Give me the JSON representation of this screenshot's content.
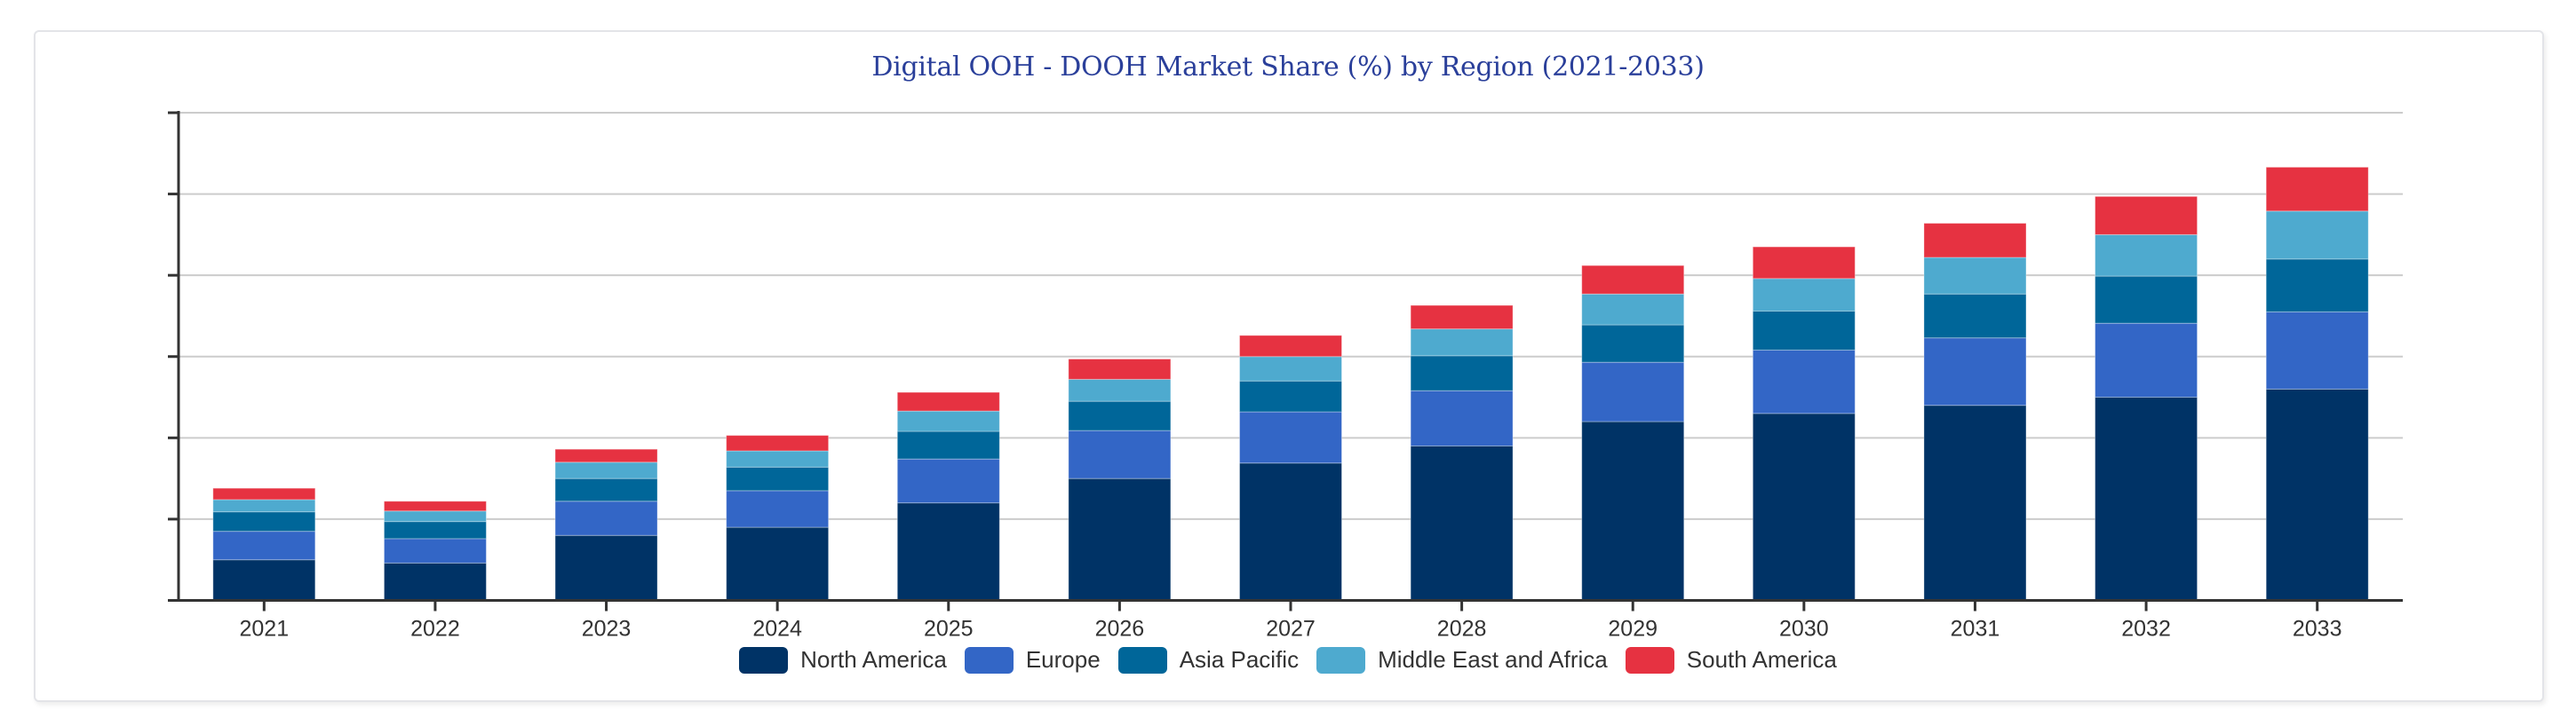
{
  "chart_data": {
    "type": "bar",
    "stacked": true,
    "title": "Digital OOH - DOOH Market Share (%) by Region (2021-2033)",
    "xlabel": "",
    "ylabel": "",
    "y_units_note": "No y-axis tick labels shown; values estimated in gridline-interval units",
    "ylim": [
      0,
      6
    ],
    "y_gridlines": [
      0,
      1,
      2,
      3,
      4,
      5,
      6
    ],
    "grid": true,
    "legend_position": "bottom",
    "categories": [
      "2021",
      "2022",
      "2023",
      "2024",
      "2025",
      "2026",
      "2027",
      "2028",
      "2029",
      "2030",
      "2031",
      "2032",
      "2033"
    ],
    "series": [
      {
        "name": "North America",
        "color": "#003366",
        "values": [
          0.5,
          0.46,
          0.8,
          0.9,
          1.2,
          1.5,
          1.69,
          1.9,
          2.2,
          2.3,
          2.4,
          2.5,
          2.6
        ]
      },
      {
        "name": "Europe",
        "color": "#3366c6",
        "values": [
          0.35,
          0.3,
          0.42,
          0.45,
          0.54,
          0.59,
          0.63,
          0.68,
          0.73,
          0.78,
          0.83,
          0.91,
          0.95
        ]
      },
      {
        "name": "Asia Pacific",
        "color": "#006699",
        "values": [
          0.24,
          0.21,
          0.28,
          0.29,
          0.34,
          0.36,
          0.38,
          0.43,
          0.46,
          0.48,
          0.54,
          0.58,
          0.65
        ]
      },
      {
        "name": "Middle East and Africa",
        "color": "#4eaacf",
        "values": [
          0.15,
          0.13,
          0.2,
          0.2,
          0.25,
          0.27,
          0.3,
          0.33,
          0.38,
          0.4,
          0.45,
          0.51,
          0.59
        ]
      },
      {
        "name": "South America",
        "color": "#e63241",
        "values": [
          0.14,
          0.12,
          0.16,
          0.19,
          0.23,
          0.25,
          0.26,
          0.29,
          0.35,
          0.39,
          0.42,
          0.47,
          0.54
        ]
      }
    ]
  },
  "colors": {
    "title": "#2a3f9a",
    "axis": "#333333",
    "grid": "#cccccc",
    "text": "#333333"
  }
}
